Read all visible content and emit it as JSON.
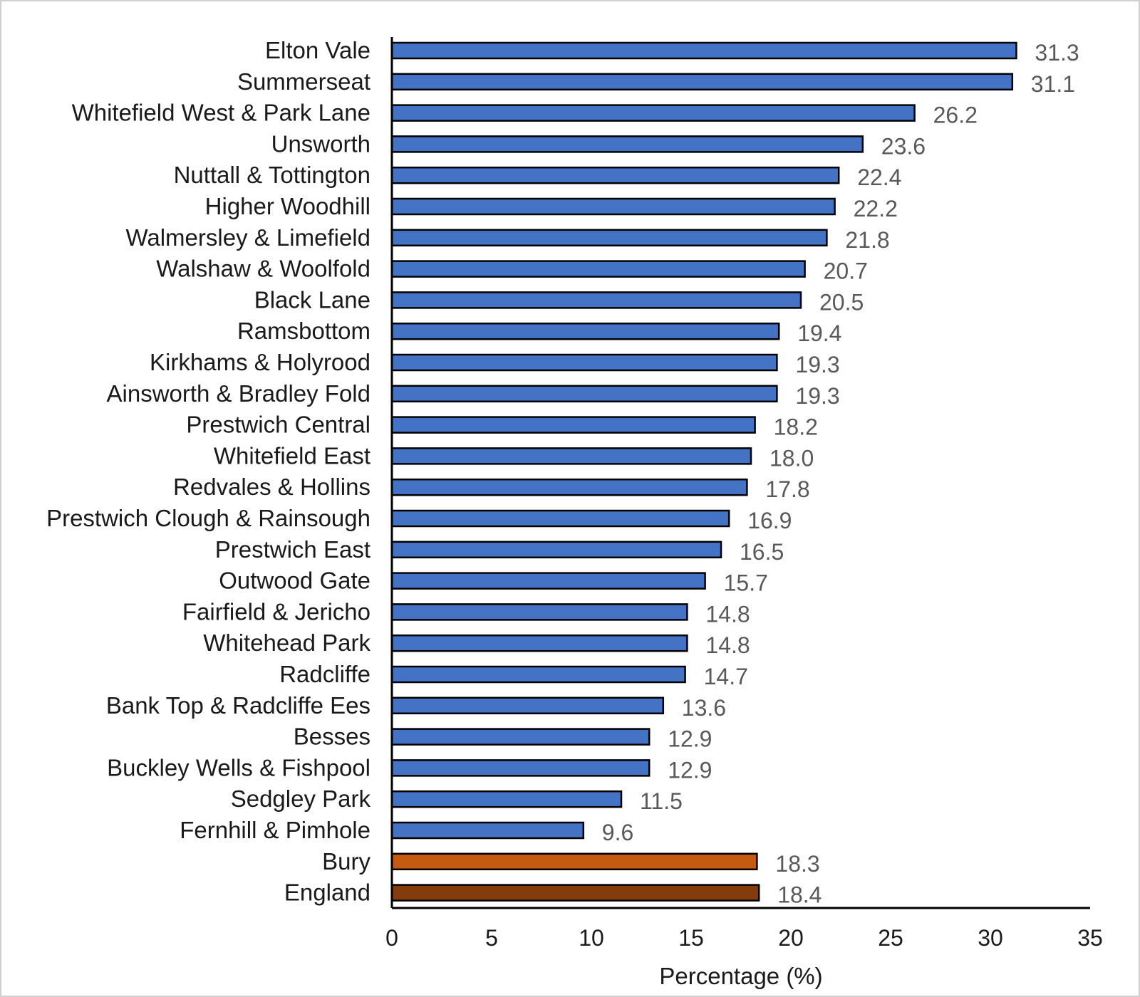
{
  "chart_data": {
    "type": "bar",
    "orientation": "horizontal",
    "title": "",
    "xlabel": "Percentage (%)",
    "ylabel": "",
    "xlim": [
      0,
      35
    ],
    "x_ticks": [
      "0",
      "5",
      "10",
      "15",
      "20",
      "25",
      "30",
      "35"
    ],
    "grid": false,
    "legend": "none",
    "colors": {
      "ward": "#4472C4",
      "bury": "#C55A11",
      "england": "#843C0C",
      "bar_outline": "#000000"
    },
    "categories": [
      "Elton Vale",
      "Summerseat",
      "Whitefield West & Park Lane",
      "Unsworth",
      "Nuttall & Tottington",
      "Higher Woodhill",
      "Walmersley & Limefield",
      "Walshaw & Woolfold",
      "Black Lane",
      "Ramsbottom",
      "Kirkhams & Holyrood",
      "Ainsworth & Bradley Fold",
      "Prestwich Central",
      "Whitefield East",
      "Redvales & Hollins",
      "Prestwich Clough & Rainsough",
      "Prestwich East",
      "Outwood Gate",
      "Fairfield & Jericho",
      "Whitehead Park",
      "Radcliffe",
      "Bank Top & Radcliffe Ees",
      "Besses",
      "Buckley Wells & Fishpool",
      "Sedgley Park",
      "Fernhill & Pimhole",
      "Bury",
      "England"
    ],
    "values": [
      31.3,
      31.1,
      26.2,
      23.6,
      22.4,
      22.2,
      21.8,
      20.7,
      20.5,
      19.4,
      19.3,
      19.3,
      18.2,
      18.0,
      17.8,
      16.9,
      16.5,
      15.7,
      14.8,
      14.8,
      14.7,
      13.6,
      12.9,
      12.9,
      11.5,
      9.6,
      18.3,
      18.4
    ],
    "value_labels": [
      "31.3",
      "31.1",
      "26.2",
      "23.6",
      "22.4",
      "22.2",
      "21.8",
      "20.7",
      "20.5",
      "19.4",
      "19.3",
      "19.3",
      "18.2",
      "18.0",
      "17.8",
      "16.9",
      "16.5",
      "15.7",
      "14.8",
      "14.8",
      "14.7",
      "13.6",
      "12.9",
      "12.9",
      "11.5",
      "9.6",
      "18.3",
      "18.4"
    ],
    "bar_colors": [
      "ward",
      "ward",
      "ward",
      "ward",
      "ward",
      "ward",
      "ward",
      "ward",
      "ward",
      "ward",
      "ward",
      "ward",
      "ward",
      "ward",
      "ward",
      "ward",
      "ward",
      "ward",
      "ward",
      "ward",
      "ward",
      "ward",
      "ward",
      "ward",
      "ward",
      "ward",
      "bury",
      "england"
    ]
  }
}
